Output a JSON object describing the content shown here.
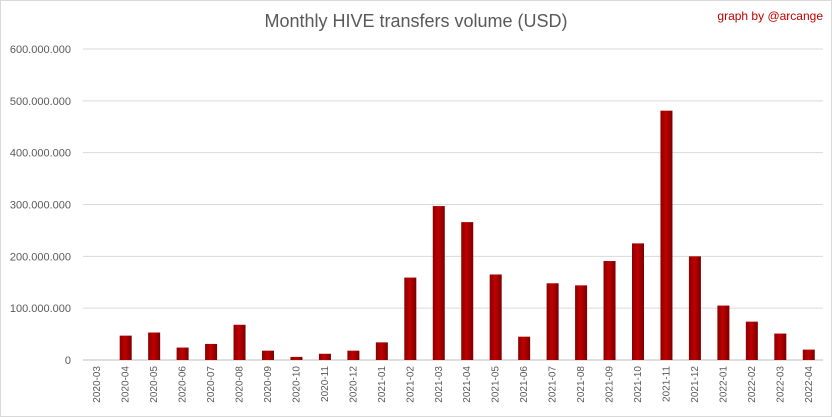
{
  "credit": "graph by @arcange",
  "chart_data": {
    "type": "bar",
    "title": "Monthly HIVE transfers volume (USD)",
    "xlabel": "",
    "ylabel": "",
    "ylim": [
      0,
      600000000
    ],
    "yticks": [
      0,
      100000000,
      200000000,
      300000000,
      400000000,
      500000000,
      600000000
    ],
    "ytick_labels": [
      "0",
      "100.000.000",
      "200.000.000",
      "300.000.000",
      "400.000.000",
      "500.000.000",
      "600.000.000"
    ],
    "grid": true,
    "bar_color": "#c00000",
    "categories": [
      "2020-03",
      "2020-04",
      "2020-05",
      "2020-06",
      "2020-07",
      "2020-08",
      "2020-09",
      "2020-10",
      "2020-11",
      "2020-12",
      "2021-01",
      "2021-02",
      "2021-03",
      "2021-04",
      "2021-05",
      "2021-06",
      "2021-07",
      "2021-08",
      "2021-09",
      "2021-10",
      "2021-11",
      "2021-12",
      "2022-01",
      "2022-02",
      "2022-03",
      "2022-04"
    ],
    "values": [
      0,
      47000000,
      53000000,
      24000000,
      31000000,
      68000000,
      18000000,
      6000000,
      12000000,
      18000000,
      34000000,
      159000000,
      297000000,
      266000000,
      165000000,
      45000000,
      148000000,
      144000000,
      191000000,
      225000000,
      481000000,
      200000000,
      105000000,
      74000000,
      51000000,
      20000000
    ]
  }
}
